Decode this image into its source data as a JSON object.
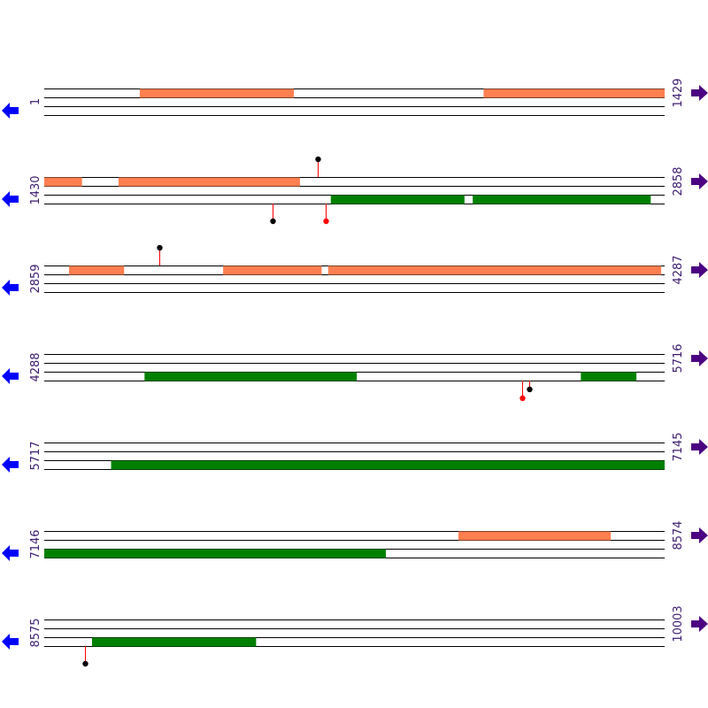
{
  "colors": {
    "orf_forward": "#ff7f50",
    "orf_reverse": "#008000",
    "marker_black": "#000000",
    "marker_red": "#ff0000",
    "stem": "#ff0000",
    "strand_line": "#000000",
    "arrow_left": "#0000ff",
    "arrow_right": "#4b0082",
    "coord_text": "#3a1a6e"
  },
  "icons": {
    "previous": "arrow-left-icon",
    "next": "arrow-right-icon"
  },
  "rows": [
    {
      "start": 1,
      "end": 1429,
      "orfs": [
        {
          "lane": 0,
          "from": 221,
          "to": 575,
          "color": "orf_forward"
        },
        {
          "lane": 0,
          "from": 1013,
          "to": 1429,
          "color": "orf_forward"
        }
      ],
      "markers": []
    },
    {
      "start": 1430,
      "end": 2858,
      "orfs": [
        {
          "lane": 0,
          "from": 1430,
          "to": 1516,
          "color": "orf_forward"
        },
        {
          "lane": 0,
          "from": 1601,
          "to": 2018,
          "color": "orf_forward"
        },
        {
          "lane": 2,
          "from": 2090,
          "to": 2397,
          "color": "orf_reverse"
        },
        {
          "lane": 2,
          "from": 2417,
          "to": 2826,
          "color": "orf_reverse"
        }
      ],
      "markers": [
        {
          "pos": 2060,
          "side": "top",
          "dot": "marker_black"
        },
        {
          "pos": 1956,
          "side": "bottom",
          "dot": "marker_black"
        },
        {
          "pos": 2078,
          "side": "bottom",
          "dot": "marker_red"
        }
      ]
    },
    {
      "start": 2859,
      "end": 4287,
      "orfs": [
        {
          "lane": 0,
          "from": 2916,
          "to": 3042,
          "color": "orf_forward"
        },
        {
          "lane": 0,
          "from": 3271,
          "to": 3497,
          "color": "orf_forward"
        },
        {
          "lane": 0,
          "from": 3513,
          "to": 4279,
          "color": "orf_forward"
        }
      ],
      "markers": [
        {
          "pos": 3123,
          "side": "top",
          "dot": "marker_black"
        }
      ]
    },
    {
      "start": 4288,
      "end": 5716,
      "orfs": [
        {
          "lane": 2,
          "from": 4519,
          "to": 5007,
          "color": "orf_reverse"
        },
        {
          "lane": 2,
          "from": 5524,
          "to": 5651,
          "color": "orf_reverse"
        }
      ],
      "markers": [
        {
          "pos": 5389,
          "side": "bottom",
          "dot": "marker_red"
        },
        {
          "pos": 5389,
          "side": "bottom-short",
          "dot": "marker_black"
        }
      ]
    },
    {
      "start": 5717,
      "end": 7145,
      "orfs": [
        {
          "lane": 2,
          "from": 5871,
          "to": 7145,
          "color": "orf_reverse"
        }
      ],
      "markers": []
    },
    {
      "start": 7146,
      "end": 8574,
      "orfs": [
        {
          "lane": 0,
          "from": 8100,
          "to": 8450,
          "color": "orf_forward"
        },
        {
          "lane": 2,
          "from": 7146,
          "to": 7932,
          "color": "orf_reverse"
        }
      ],
      "markers": []
    },
    {
      "start": 8575,
      "end": 10003,
      "orfs": [
        {
          "lane": 2,
          "from": 8685,
          "to": 9062,
          "color": "orf_reverse"
        }
      ],
      "markers": [
        {
          "pos": 8669,
          "side": "bottom",
          "dot": "marker_black"
        }
      ]
    }
  ]
}
